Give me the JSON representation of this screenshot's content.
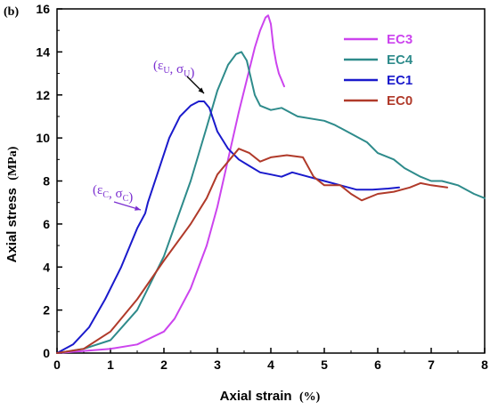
{
  "chart_data": {
    "type": "line",
    "panel_label": "(b)",
    "xlabel": "Axial strain",
    "xunit": "(%)",
    "ylabel": "Axial stress",
    "yunit": "(MPa)",
    "xlim": [
      0,
      8
    ],
    "ylim": [
      0,
      16
    ],
    "xticks": [
      "0",
      "1",
      "2",
      "3",
      "4",
      "5",
      "6",
      "7",
      "8"
    ],
    "yticks": [
      "0",
      "2",
      "4",
      "6",
      "8",
      "10",
      "12",
      "14",
      "16"
    ],
    "grid": false,
    "legend_position": "top-right",
    "series": [
      {
        "name": "EC3",
        "color": "#cc44ee",
        "x": [
          0,
          0.5,
          1.0,
          1.5,
          2.0,
          2.2,
          2.5,
          2.8,
          3.0,
          3.2,
          3.4,
          3.6,
          3.7,
          3.8,
          3.9,
          3.95,
          4.0,
          4.05,
          4.1,
          4.15,
          4.2,
          4.25
        ],
        "y": [
          0,
          0.1,
          0.2,
          0.4,
          1.0,
          1.6,
          3.0,
          5.0,
          6.8,
          9.0,
          11.2,
          13.2,
          14.2,
          15.0,
          15.6,
          15.7,
          15.3,
          14.2,
          13.5,
          13.0,
          12.7,
          12.4
        ]
      },
      {
        "name": "EC4",
        "color": "#2e8b8b",
        "x": [
          0,
          0.5,
          1.0,
          1.5,
          2.0,
          2.5,
          2.8,
          3.0,
          3.2,
          3.35,
          3.45,
          3.55,
          3.7,
          3.8,
          4.0,
          4.2,
          4.5,
          5.0,
          5.2,
          5.5,
          5.8,
          6.0,
          6.3,
          6.5,
          6.8,
          7.0,
          7.2,
          7.5,
          7.8,
          8.0
        ],
        "y": [
          0,
          0.2,
          0.6,
          2.0,
          4.5,
          8.0,
          10.5,
          12.2,
          13.4,
          13.9,
          14.0,
          13.6,
          12.0,
          11.5,
          11.3,
          11.4,
          11.0,
          10.8,
          10.6,
          10.2,
          9.8,
          9.3,
          9.0,
          8.6,
          8.2,
          8.0,
          8.0,
          7.8,
          7.4,
          7.2
        ]
      },
      {
        "name": "EC1",
        "color": "#1a1acc",
        "x": [
          0,
          0.3,
          0.6,
          0.9,
          1.2,
          1.5,
          1.65,
          1.7,
          1.9,
          2.1,
          2.3,
          2.5,
          2.65,
          2.75,
          2.85,
          3.0,
          3.2,
          3.4,
          3.6,
          3.8,
          4.0,
          4.2,
          4.4,
          4.7,
          5.0,
          5.3,
          5.6,
          5.9,
          6.2,
          6.4
        ],
        "y": [
          0,
          0.4,
          1.2,
          2.5,
          4.0,
          5.8,
          6.5,
          7.0,
          8.5,
          10.0,
          11.0,
          11.5,
          11.7,
          11.7,
          11.4,
          10.3,
          9.5,
          9.0,
          8.7,
          8.4,
          8.3,
          8.2,
          8.4,
          8.2,
          8.0,
          7.8,
          7.6,
          7.6,
          7.65,
          7.7
        ]
      },
      {
        "name": "EC0",
        "color": "#b03a2a",
        "x": [
          0,
          0.5,
          1.0,
          1.5,
          2.0,
          2.5,
          2.8,
          3.0,
          3.2,
          3.4,
          3.6,
          3.8,
          4.0,
          4.3,
          4.6,
          4.8,
          5.0,
          5.3,
          5.5,
          5.7,
          6.0,
          6.3,
          6.6,
          6.8,
          7.0,
          7.3
        ],
        "y": [
          0,
          0.2,
          1.0,
          2.5,
          4.3,
          6.0,
          7.2,
          8.3,
          8.9,
          9.5,
          9.3,
          8.9,
          9.1,
          9.2,
          9.1,
          8.2,
          7.8,
          7.8,
          7.4,
          7.1,
          7.4,
          7.5,
          7.7,
          7.9,
          7.8,
          7.7
        ]
      }
    ],
    "annotations": [
      {
        "symbol": "ε",
        "sub1": "U",
        "sym2": "σ",
        "sub2": "U",
        "x": 2.75,
        "y": 11.7,
        "color": "#7b2fd0"
      },
      {
        "symbol": "ε",
        "sub1": "C",
        "sym2": "σ",
        "sub2": "C",
        "x": 1.65,
        "y": 6.5,
        "color": "#7b2fd0"
      }
    ]
  }
}
